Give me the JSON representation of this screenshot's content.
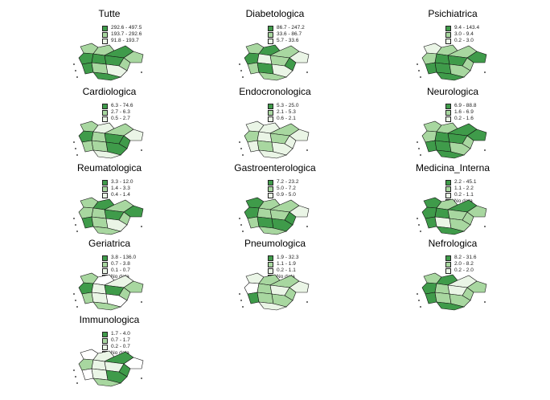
{
  "colors": {
    "dark": "#3f9b4a",
    "mid": "#a8d7a0",
    "light": "#eaf5e6",
    "nodata": "#ffffff"
  },
  "panels": [
    {
      "title": "Tutte",
      "legend": [
        "292.6 - 497.5",
        "193.7 - 292.6",
        "91.8 - 193.7"
      ]
    },
    {
      "title": "Diabetologica",
      "legend": [
        "86.7 - 247.2",
        "33.6 - 86.7",
        "5.7 - 33.6"
      ]
    },
    {
      "title": "Psichiatrica",
      "legend": [
        "9.4 - 143.4",
        "3.0 - 9.4",
        "0.2 - 3.0"
      ]
    },
    {
      "title": "Cardiologica",
      "legend": [
        "6.3 - 74.6",
        "2.7 - 6.3",
        "0.5 - 2.7"
      ]
    },
    {
      "title": "Endocronologica",
      "legend": [
        "5.3 - 25.0",
        "2.1 - 5.3",
        "0.6 - 2.1"
      ]
    },
    {
      "title": "Neurologica",
      "legend": [
        "6.9 - 88.8",
        "1.6 - 6.9",
        "0.2 - 1.6"
      ]
    },
    {
      "title": "Reumatologica",
      "legend": [
        "3.3 - 12.0",
        "1.4 - 3.3",
        "0.4 - 1.4"
      ]
    },
    {
      "title": "Gastroenterologica",
      "legend": [
        "7.2 - 23.2",
        "5.0 - 7.2",
        "0.9 - 5.0"
      ]
    },
    {
      "title": "Medicina_Interna",
      "legend": [
        "2.2 - 45.1",
        "1.1 - 2.2",
        "0.2 - 1.1",
        "No data"
      ]
    },
    {
      "title": "Geriatrica",
      "legend": [
        "3.8 - 136.0",
        "0.7 - 3.8",
        "0.1 - 0.7",
        "No data"
      ]
    },
    {
      "title": "Pneumologica",
      "legend": [
        "1.9 - 32.3",
        "1.1 - 1.9",
        "0.2 - 1.1",
        "No data"
      ]
    },
    {
      "title": "Nefrologica",
      "legend": [
        "8.2 - 31.6",
        "2.0 - 8.2",
        "0.2 - 2.0"
      ]
    },
    {
      "title": "Immunologica",
      "legend": [
        "1.7 - 4.0",
        "0.7 - 1.7",
        "0.2 - 0.7",
        "No data"
      ]
    }
  ],
  "fill_patterns": [
    [
      1,
      1,
      0,
      1,
      0,
      0,
      0,
      1,
      0,
      1,
      2,
      0
    ],
    [
      1,
      0,
      1,
      2,
      0,
      2,
      1,
      0,
      1,
      0,
      2,
      1
    ],
    [
      2,
      1,
      1,
      0,
      1,
      0,
      0,
      1,
      0,
      0,
      1,
      0
    ],
    [
      1,
      2,
      1,
      2,
      0,
      1,
      0,
      0,
      1,
      1,
      0,
      2
    ],
    [
      2,
      2,
      1,
      2,
      1,
      2,
      1,
      2,
      2,
      1,
      2,
      2
    ],
    [
      1,
      1,
      0,
      0,
      1,
      0,
      0,
      1,
      0,
      0,
      1,
      0
    ],
    [
      1,
      0,
      1,
      0,
      1,
      1,
      0,
      1,
      0,
      1,
      2,
      1
    ],
    [
      0,
      1,
      1,
      2,
      0,
      1,
      1,
      0,
      1,
      0,
      0,
      1
    ],
    [
      0,
      1,
      0,
      1,
      0,
      0,
      1,
      1,
      0,
      2,
      1,
      0
    ],
    [
      1,
      3,
      2,
      1,
      0,
      2,
      0,
      1,
      1,
      2,
      3,
      1
    ],
    [
      2,
      1,
      1,
      2,
      3,
      1,
      2,
      1,
      0,
      1,
      1,
      2
    ],
    [
      1,
      0,
      2,
      1,
      0,
      1,
      2,
      1,
      0,
      1,
      1,
      0
    ],
    [
      3,
      2,
      0,
      3,
      1,
      2,
      2,
      0,
      3,
      2,
      0,
      1
    ]
  ]
}
